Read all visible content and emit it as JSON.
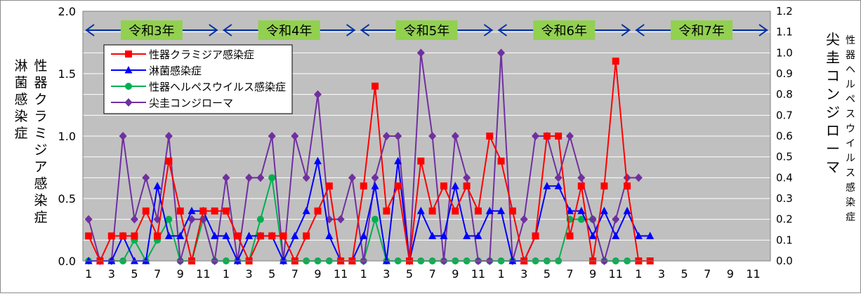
{
  "chart_data": {
    "type": "line",
    "left_axis": {
      "ylim": [
        0,
        2.0
      ],
      "ticks": [
        "0.0",
        "0.5",
        "1.0",
        "1.5",
        "2.0"
      ],
      "tick_values": [
        0,
        0.5,
        1.0,
        1.5,
        2.0
      ]
    },
    "right_axis": {
      "ylim": [
        0,
        1.2
      ],
      "ticks": [
        "0.0",
        "0.1",
        "0.2",
        "0.3",
        "0.4",
        "0.5",
        "0.6",
        "0.7",
        "0.8",
        "0.9",
        "1.0",
        "1.1",
        "1.2"
      ],
      "tick_values": [
        0,
        0.1,
        0.2,
        0.3,
        0.4,
        0.5,
        0.6,
        0.7,
        0.8,
        0.9,
        1.0,
        1.1,
        1.2
      ]
    },
    "left_label_1": "淋菌感染症",
    "left_label_2": "性器クラミジア感染症",
    "right_label_1": "尖圭コンジローマ",
    "right_label_2": "性器ヘルペスウイルス感染症",
    "x_tick_labels": [
      "1",
      "3",
      "5",
      "7",
      "9",
      "11",
      "1",
      "3",
      "5",
      "7",
      "9",
      "11",
      "1",
      "3",
      "5",
      "7",
      "9",
      "11",
      "1",
      "3",
      "5",
      "7",
      "9",
      "11",
      "1",
      "3",
      "5",
      "7",
      "9",
      "11"
    ],
    "num_months": 60,
    "years": [
      {
        "label": "令和3年",
        "start": 0
      },
      {
        "label": "令和4年",
        "start": 12
      },
      {
        "label": "令和5年",
        "start": 24
      },
      {
        "label": "令和6年",
        "start": 36
      },
      {
        "label": "令和7年",
        "start": 48
      }
    ],
    "legend_placement": "top-left",
    "grid": true,
    "series": [
      {
        "name": "性器クラミジア感染症",
        "axis": "left",
        "color": "#ff0000",
        "marker": "square",
        "values": [
          0.2,
          0,
          0.2,
          0.2,
          0.2,
          0.4,
          0.2,
          0.8,
          0.4,
          0,
          0.4,
          0.4,
          0.4,
          0.2,
          0,
          0.2,
          0.2,
          0.2,
          0,
          0.2,
          0.4,
          0.6,
          0,
          0,
          0.6,
          1.4,
          0.4,
          0.6,
          0,
          0.8,
          0.4,
          0.6,
          0.4,
          0.6,
          0.4,
          1.0,
          0.8,
          0.4,
          0,
          0.2,
          1.0,
          1.0,
          0.2,
          0.6,
          0,
          0.6,
          1.6,
          0.6,
          0,
          0
        ]
      },
      {
        "name": "淋菌感染症",
        "axis": "left",
        "color": "#0000ff",
        "marker": "triangle",
        "values": [
          0,
          0,
          0,
          0.2,
          0,
          0,
          0.6,
          0.2,
          0.2,
          0.4,
          0.4,
          0.2,
          0.2,
          0,
          0.2,
          0.2,
          0.2,
          0,
          0.2,
          0.4,
          0.8,
          0.2,
          0,
          0,
          0.2,
          0.6,
          0,
          0.8,
          0,
          0.4,
          0.2,
          0.2,
          0.6,
          0.2,
          0.2,
          0.4,
          0.4,
          0,
          0,
          0.2,
          0.6,
          0.6,
          0.4,
          0.4,
          0.2,
          0.4,
          0.2,
          0.4,
          0.2,
          0.2
        ]
      },
      {
        "name": "性器ヘルペスウイルス感染症",
        "axis": "right",
        "color": "#00b050",
        "marker": "circle",
        "values": [
          0,
          0,
          0,
          0,
          0.1,
          0,
          0.1,
          0.2,
          0,
          0,
          0.2,
          0,
          0,
          0,
          0,
          0.2,
          0.4,
          0,
          0,
          0,
          0,
          0,
          0,
          0,
          0,
          0.2,
          0,
          0,
          0,
          0,
          0,
          0,
          0,
          0,
          0,
          0,
          0,
          0,
          0,
          0,
          0,
          0,
          0.2,
          0.2,
          0.2,
          0,
          0,
          0,
          0,
          0
        ]
      },
      {
        "name": "尖圭コンジローマ",
        "axis": "right",
        "color": "#7030a0",
        "marker": "diamond",
        "values": [
          0.2,
          0,
          0,
          0.6,
          0.2,
          0.4,
          0.2,
          0.6,
          0,
          0.2,
          0.2,
          0,
          0.4,
          0,
          0.4,
          0.4,
          0.6,
          0,
          0.6,
          0.4,
          0.8,
          0.2,
          0.2,
          0.4,
          0,
          0.4,
          0.6,
          0.6,
          0,
          1.0,
          0.6,
          0,
          0.6,
          0.4,
          0,
          0,
          1.0,
          0,
          0.2,
          0.6,
          0.6,
          0.4,
          0.6,
          0.4,
          0.2,
          0,
          0.2,
          0.4,
          0.4,
          null
        ]
      }
    ]
  }
}
